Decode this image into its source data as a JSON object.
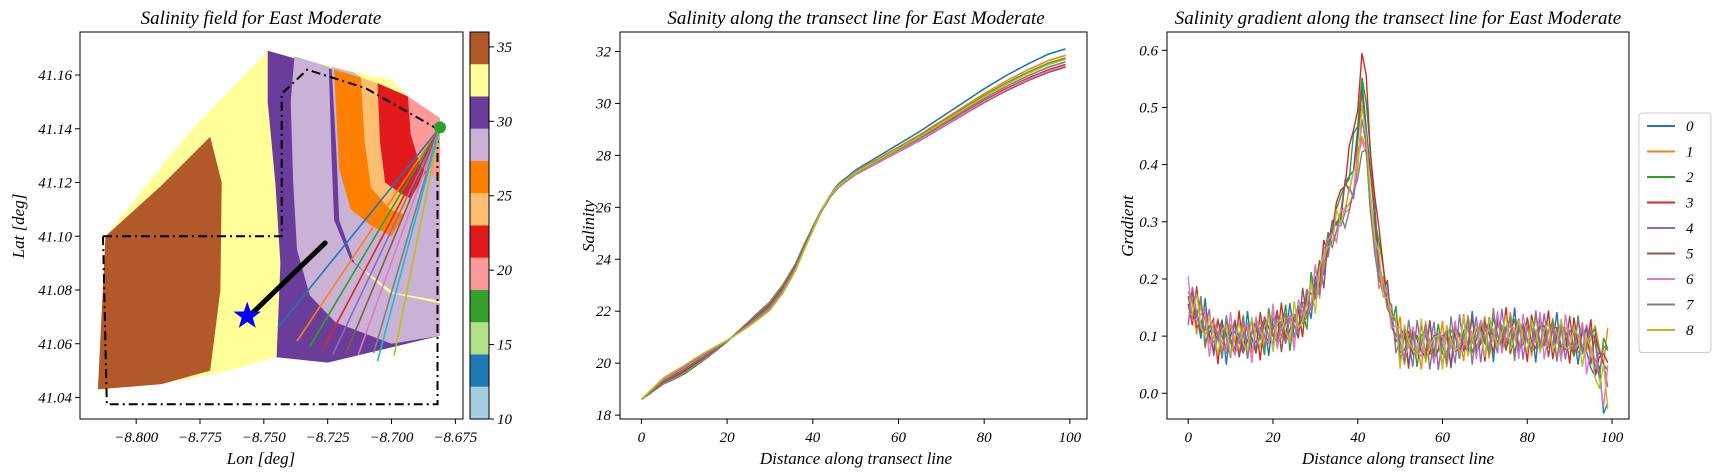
{
  "figure": {
    "panels": [
      "map",
      "salinity",
      "gradient"
    ]
  },
  "chart_data": [
    {
      "type": "heatmap",
      "title": "Salinity field for East Moderate",
      "xlabel": "Lon [deg]",
      "ylabel": "Lat [deg]",
      "xlim": [
        -8.822,
        -8.672
      ],
      "ylim": [
        41.032,
        41.176
      ],
      "xticks": [
        -8.8,
        -8.775,
        -8.75,
        -8.725,
        -8.7,
        -8.675
      ],
      "xtick_labels": [
        "−8.800",
        "−8.775",
        "−8.750",
        "−8.725",
        "−8.700",
        "−8.675"
      ],
      "yticks": [
        41.04,
        41.06,
        41.08,
        41.1,
        41.12,
        41.14,
        41.16
      ],
      "ytick_labels": [
        "41.04",
        "41.06",
        "41.08",
        "41.10",
        "41.12",
        "41.14",
        "41.16"
      ],
      "colorbar": {
        "range": [
          10,
          36
        ],
        "ticks": [
          10,
          15,
          20,
          25,
          30,
          35
        ],
        "colors": [
          "#a6cee3",
          "#1f78b4",
          "#b2df8a",
          "#33a02c",
          "#fb9a99",
          "#e31a1c",
          "#fdbf6f",
          "#ff7f00",
          "#cab2d6",
          "#6a3d9a",
          "#ffff99",
          "#b15928"
        ]
      },
      "target_marker": {
        "lon": -8.7565,
        "lat": 41.0703,
        "color": "#0000ff",
        "shape": "star"
      },
      "source_point": {
        "lon": -8.681,
        "lat": 41.1405,
        "color": "#2ca02c"
      },
      "transect_end_points": [
        {
          "lon": -8.7445,
          "lat": 41.066
        },
        {
          "lon": -8.737,
          "lat": 41.061
        },
        {
          "lon": -8.732,
          "lat": 41.059
        },
        {
          "lon": -8.727,
          "lat": 41.0575
        },
        {
          "lon": -8.723,
          "lat": 41.056
        },
        {
          "lon": -8.718,
          "lat": 41.056
        },
        {
          "lon": -8.713,
          "lat": 41.056
        },
        {
          "lon": -8.707,
          "lat": 41.0565
        },
        {
          "lon": -8.699,
          "lat": 41.0555
        },
        {
          "lon": -8.7055,
          "lat": 41.0535
        }
      ],
      "transect_colors": [
        "#1f77b4",
        "#ff7f0e",
        "#2ca02c",
        "#d62728",
        "#9467bd",
        "#8c564b",
        "#e377c2",
        "#7f7f7f",
        "#bcbd22",
        "#17becf"
      ],
      "trajectory": {
        "start": {
          "lon": -8.7555,
          "lat": 41.0705
        },
        "end": {
          "lon": -8.726,
          "lat": 41.0975
        }
      }
    },
    {
      "type": "line",
      "title": "Salinity along the transect line for East Moderate",
      "xlabel": "Distance along transect line",
      "ylabel": "Salinity",
      "xlim": [
        -5,
        104
      ],
      "ylim": [
        17.85,
        32.75
      ],
      "xticks": [
        0,
        20,
        40,
        60,
        80,
        100
      ],
      "yticks": [
        18,
        20,
        22,
        24,
        26,
        28,
        30,
        32
      ],
      "x": [
        0,
        5,
        10,
        15,
        20,
        25,
        30,
        33,
        36,
        38,
        40,
        42,
        44,
        46,
        48,
        50,
        55,
        60,
        65,
        70,
        75,
        80,
        85,
        90,
        95,
        99
      ],
      "base_curve": [
        18.6,
        19.3,
        19.75,
        20.3,
        20.85,
        21.5,
        22.2,
        22.85,
        23.7,
        24.45,
        25.15,
        25.85,
        26.4,
        26.8,
        27.05,
        27.3,
        27.75,
        28.2,
        28.65,
        29.15,
        29.65,
        30.15,
        30.6,
        31.0,
        31.35,
        31.55
      ],
      "series": [
        {
          "name": "0",
          "end": 32.1,
          "color": "#1f77b4"
        },
        {
          "name": "1",
          "end": 31.85,
          "color": "#ff7f0e"
        },
        {
          "name": "2",
          "end": 31.75,
          "color": "#2ca02c"
        },
        {
          "name": "3",
          "end": 31.5,
          "color": "#d62728"
        },
        {
          "name": "4",
          "end": 31.45,
          "color": "#9467bd"
        },
        {
          "name": "5",
          "end": 31.4,
          "color": "#8c564b"
        },
        {
          "name": "6",
          "end": 31.45,
          "color": "#e377c2"
        },
        {
          "name": "7",
          "end": 31.6,
          "color": "#7f7f7f"
        },
        {
          "name": "8",
          "end": 31.7,
          "color": "#bcbd22"
        }
      ]
    },
    {
      "type": "line",
      "title": "Salinity gradient along the transect line for East Moderate",
      "xlabel": "Distance along transect line",
      "ylabel": "Gradient",
      "xlim": [
        -5,
        104
      ],
      "ylim": [
        -0.045,
        0.632
      ],
      "xticks": [
        0,
        20,
        40,
        60,
        80,
        100
      ],
      "yticks": [
        0.0,
        0.1,
        0.2,
        0.3,
        0.4,
        0.5,
        0.6
      ],
      "ytick_labels": [
        "0.0",
        "0.1",
        "0.2",
        "0.3",
        "0.4",
        "0.5",
        "0.6"
      ],
      "x": [
        0,
        3,
        6,
        10,
        15,
        20,
        25,
        28,
        31,
        33,
        35,
        37,
        39,
        40,
        41,
        42,
        43,
        45,
        48,
        50,
        55,
        60,
        65,
        70,
        75,
        80,
        85,
        90,
        95,
        97,
        99
      ],
      "base_curve": [
        0.16,
        0.13,
        0.1,
        0.095,
        0.1,
        0.11,
        0.12,
        0.15,
        0.2,
        0.26,
        0.31,
        0.36,
        0.42,
        0.47,
        0.55,
        0.5,
        0.4,
        0.25,
        0.13,
        0.09,
        0.085,
        0.085,
        0.095,
        0.1,
        0.105,
        0.1,
        0.1,
        0.095,
        0.085,
        0.05,
        0.04
      ],
      "series": [
        {
          "name": "0",
          "peak": 0.53,
          "end": -0.015,
          "color": "#1f77b4"
        },
        {
          "name": "1",
          "peak": 0.46,
          "end": 0.085,
          "color": "#ff7f0e"
        },
        {
          "name": "2",
          "peak": 0.56,
          "end": 0.07,
          "color": "#2ca02c"
        },
        {
          "name": "3",
          "peak": 0.6,
          "end": 0.05,
          "color": "#d62728"
        },
        {
          "name": "4",
          "peak": 0.46,
          "end": 0.04,
          "color": "#9467bd"
        },
        {
          "name": "5",
          "peak": 0.51,
          "end": 0.06,
          "color": "#8c564b"
        },
        {
          "name": "6",
          "peak": 0.45,
          "end": 0.005,
          "color": "#e377c2"
        },
        {
          "name": "7",
          "peak": 0.43,
          "end": 0.06,
          "color": "#7f7f7f"
        },
        {
          "name": "8",
          "peak": 0.48,
          "end": 0.0,
          "color": "#bcbd22"
        }
      ],
      "legend": {
        "placement": "right",
        "entries": [
          "0",
          "1",
          "2",
          "3",
          "4",
          "5",
          "6",
          "7",
          "8"
        ]
      }
    }
  ]
}
